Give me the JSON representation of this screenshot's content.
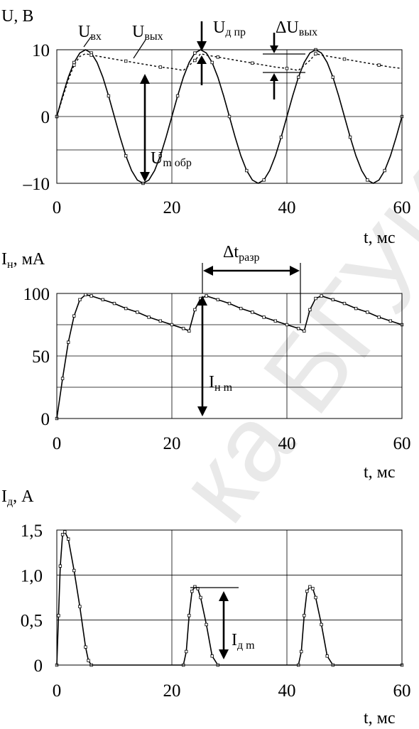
{
  "chart_data": [
    {
      "type": "line",
      "ylabel": "U, В",
      "ylabel_sub": "",
      "xlabel": "t, мс",
      "xlim": [
        0,
        60
      ],
      "ylim": [
        -10,
        10
      ],
      "x_ticks": [
        0,
        20,
        40,
        60
      ],
      "y_ticks": [
        10,
        0,
        -10
      ],
      "y_tick_labels": [
        "10",
        "0",
        "–10"
      ],
      "grid": true,
      "series": [
        {
          "name": "U вх",
          "style": "solid",
          "x": [
            0,
            1,
            2,
            3,
            4,
            5,
            6,
            7,
            8,
            9,
            10,
            11,
            12,
            13,
            14,
            15,
            16,
            17,
            18,
            19,
            20,
            21,
            22,
            23,
            24,
            25,
            26,
            27,
            28,
            29,
            30,
            31,
            32,
            33,
            34,
            35,
            36,
            37,
            38,
            39,
            40,
            41,
            42,
            43,
            44,
            45,
            46,
            47,
            48,
            49,
            50,
            51,
            52,
            53,
            54,
            55,
            56,
            57,
            58,
            59,
            60
          ],
          "y": [
            0,
            3.09,
            5.88,
            8.09,
            9.51,
            10,
            9.51,
            8.09,
            5.88,
            3.09,
            0,
            -3.09,
            -5.88,
            -8.09,
            -9.51,
            -10,
            -9.51,
            -8.09,
            -5.88,
            -3.09,
            0,
            3.09,
            5.88,
            8.09,
            9.51,
            10,
            9.51,
            8.09,
            5.88,
            3.09,
            0,
            -3.09,
            -5.88,
            -8.09,
            -9.51,
            -10,
            -9.51,
            -8.09,
            -5.88,
            -3.09,
            0,
            3.09,
            5.88,
            8.09,
            9.51,
            10,
            9.51,
            8.09,
            5.88,
            3.09,
            0,
            -3.09,
            -5.88,
            -8.09,
            -9.51,
            -10,
            -9.51,
            -8.09,
            -5.88,
            -3.09,
            0
          ]
        },
        {
          "name": "U вых",
          "style": "dashed",
          "x": [
            0,
            1,
            2,
            3,
            4,
            5,
            6,
            8,
            10,
            12,
            14,
            16,
            18,
            20,
            22,
            24,
            25,
            26,
            28,
            30,
            32,
            34,
            36,
            38,
            40,
            42,
            44,
            45,
            46,
            48,
            50,
            52,
            54,
            56,
            58,
            60
          ],
          "y": [
            0,
            2.8,
            5.5,
            7.7,
            9.0,
            9.4,
            9.2,
            8.9,
            8.6,
            8.3,
            8.0,
            7.7,
            7.4,
            7.2,
            6.9,
            8.4,
            9.4,
            9.2,
            8.9,
            8.6,
            8.3,
            8.0,
            7.7,
            7.4,
            7.2,
            6.9,
            8.4,
            9.4,
            9.2,
            8.9,
            8.6,
            8.3,
            8.0,
            7.7,
            7.4,
            7.2
          ]
        }
      ],
      "annotations": [
        {
          "main": "U",
          "sub": "вх"
        },
        {
          "main": "U",
          "sub": "вых"
        },
        {
          "main": "U",
          "sub": "д пр"
        },
        {
          "main": "ΔU",
          "sub": "вых"
        },
        {
          "main": "U",
          "sub": "m обр"
        }
      ]
    },
    {
      "type": "line",
      "ylabel": "I",
      "ylabel_sub": "н",
      "ylabel_unit": ", мА",
      "xlabel": "t, мс",
      "xlim": [
        0,
        60
      ],
      "ylim": [
        0,
        100
      ],
      "x_ticks": [
        0,
        20,
        40,
        60
      ],
      "y_ticks": [
        100,
        50,
        0
      ],
      "y_tick_labels": [
        "100",
        "50",
        "0"
      ],
      "grid": true,
      "series": [
        {
          "name": "I н",
          "style": "solid",
          "x": [
            0,
            1,
            2,
            3,
            4,
            5,
            6,
            8,
            10,
            12,
            14,
            16,
            18,
            20,
            22,
            23,
            24,
            25,
            26,
            28,
            30,
            32,
            34,
            36,
            38,
            40,
            42,
            43,
            44,
            45,
            46,
            48,
            50,
            52,
            54,
            56,
            58,
            60
          ],
          "y": [
            0,
            32,
            61,
            82,
            95,
            99,
            98,
            95,
            92,
            88,
            85,
            81,
            78,
            75,
            72,
            70,
            87,
            96,
            98,
            95,
            92,
            88,
            85,
            81,
            78,
            75,
            72,
            70,
            87,
            96,
            98,
            95,
            92,
            88,
            85,
            81,
            78,
            75
          ]
        }
      ],
      "annotations": [
        {
          "main": "Δt",
          "sub": "разр"
        },
        {
          "main": "I",
          "sub": "н m"
        }
      ]
    },
    {
      "type": "line",
      "ylabel": "I",
      "ylabel_sub": "д",
      "ylabel_unit": ", А",
      "xlabel": "t, мс",
      "xlim": [
        0,
        60
      ],
      "ylim": [
        0,
        1.5
      ],
      "x_ticks": [
        0,
        20,
        40,
        60
      ],
      "y_ticks": [
        1.5,
        1.0,
        0.5,
        0
      ],
      "y_tick_labels": [
        "1,5",
        "1,0",
        "0,5",
        "0"
      ],
      "grid": true,
      "series": [
        {
          "name": "I д",
          "style": "solid",
          "x": [
            0,
            0.3,
            0.6,
            1,
            1.4,
            2,
            3,
            4,
            5,
            5.5,
            6,
            22,
            22.5,
            23,
            23.5,
            24,
            24.5,
            25,
            26,
            27,
            28,
            42,
            42.5,
            43,
            43.5,
            44,
            44.5,
            45,
            46,
            47,
            48,
            60
          ],
          "y": [
            0,
            0.55,
            1.1,
            1.45,
            1.48,
            1.4,
            1.05,
            0.65,
            0.2,
            0.05,
            0,
            0,
            0.15,
            0.55,
            0.82,
            0.87,
            0.85,
            0.75,
            0.45,
            0.1,
            0,
            0,
            0.15,
            0.55,
            0.82,
            0.87,
            0.85,
            0.75,
            0.45,
            0.1,
            0,
            0
          ]
        }
      ],
      "annotations": [
        {
          "main": "I",
          "sub": "д m"
        }
      ]
    }
  ],
  "watermark": "ка БГУИР"
}
